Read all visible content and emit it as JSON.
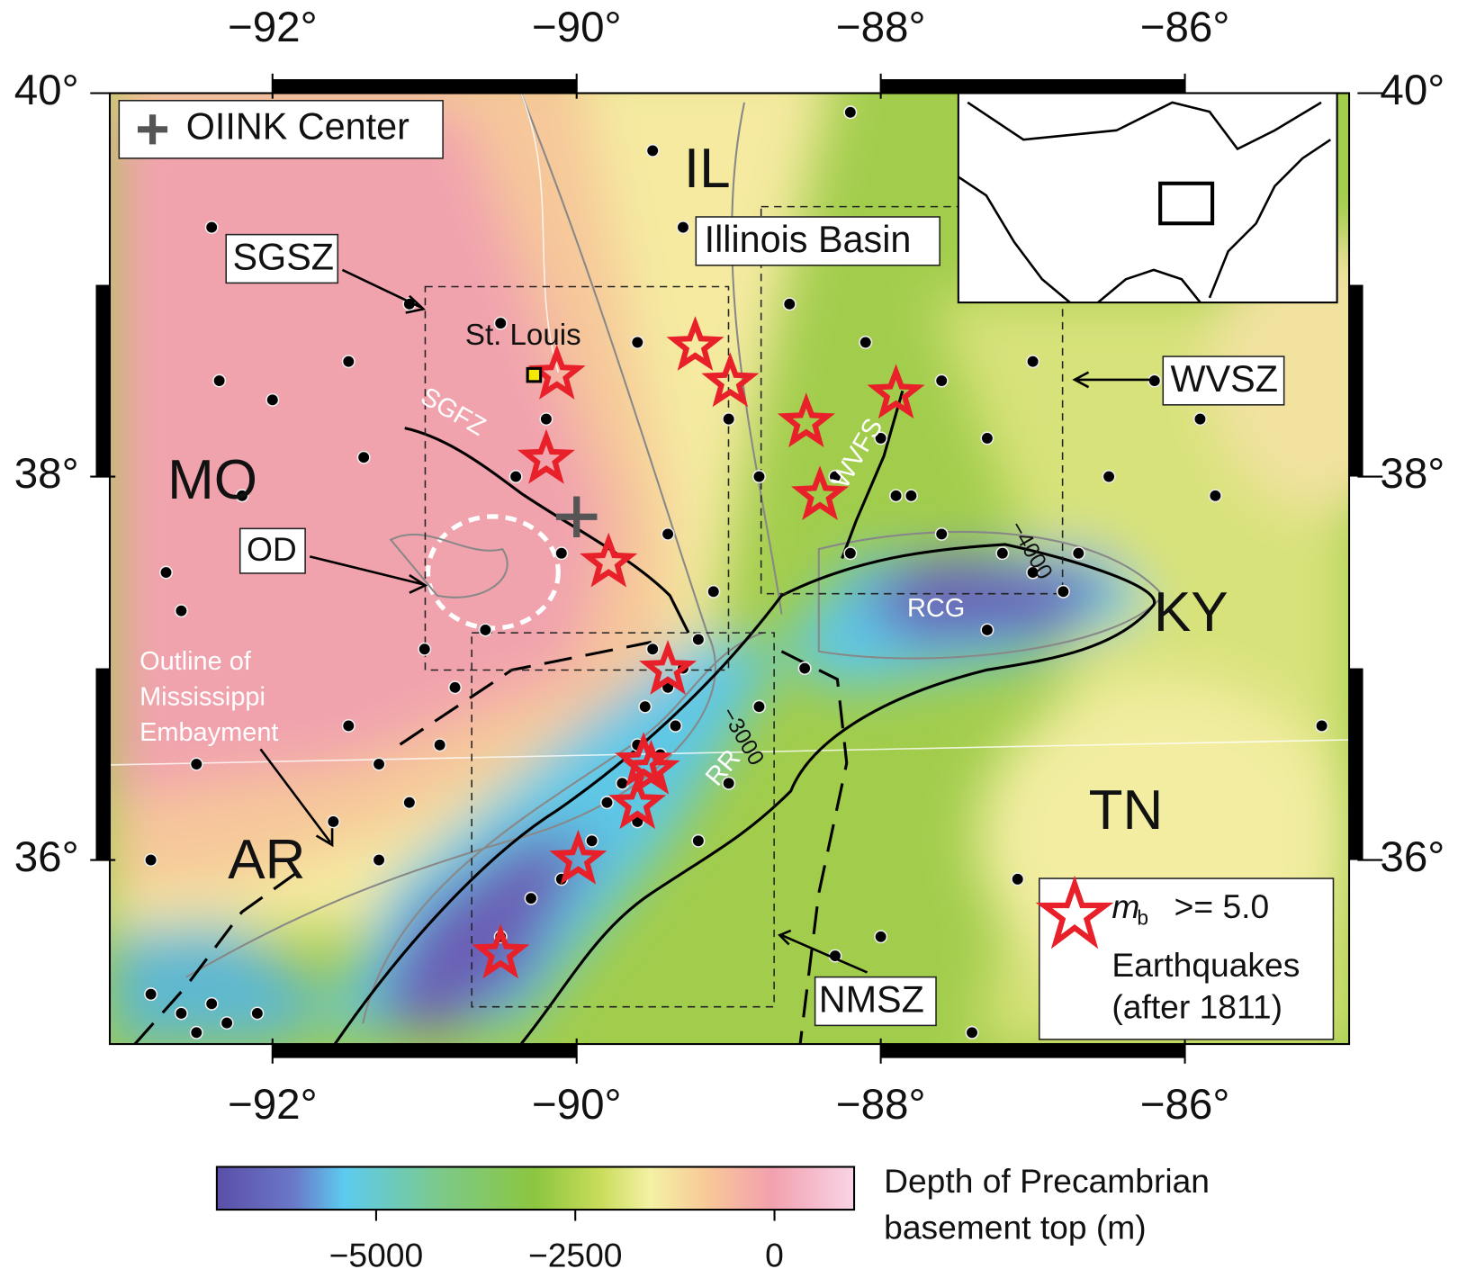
{
  "map": {
    "xlim": [
      -93.07,
      -84.92
    ],
    "ylim": [
      35.04,
      40
    ],
    "xticks": [
      {
        "value": -92,
        "label": "−92°"
      },
      {
        "value": -90,
        "label": "−90°"
      },
      {
        "value": -88,
        "label": "−88°"
      },
      {
        "value": -86,
        "label": "−86°"
      }
    ],
    "yticks": [
      {
        "value": 40,
        "label": "40°"
      },
      {
        "value": 38,
        "label": "38°"
      },
      {
        "value": 36,
        "label": "36°"
      }
    ],
    "legend_center": "OIINK Center",
    "states": {
      "IL": "IL",
      "MO": "MO",
      "KY": "KY",
      "TN": "TN",
      "AR": "AR"
    },
    "regions": {
      "illinois_basin": "Illinois Basin",
      "sgsz": "SGSZ",
      "wvsz": "WVSZ",
      "nmsz": "NMSZ",
      "od": "OD",
      "st_louis": "St. Louis",
      "sgfz": "SGFZ",
      "wvfs": "WVFS",
      "rcg": "RCG",
      "rr": "RR"
    },
    "embayment": [
      "Outline of",
      "Mississippi",
      "Embayment"
    ],
    "contours": [
      "−4000",
      "−3000"
    ],
    "legend": {
      "m": "m",
      "sub": "b",
      "threshold": ">= 5.0",
      "line2": "Earthquakes",
      "line3": "(after 1811)"
    },
    "st_louis_point": [
      -90.28,
      38.53
    ],
    "oiink_center": [
      -90.0,
      37.79
    ],
    "large_earthquakes": [
      [
        -90.13,
        38.53
      ],
      [
        -89.22,
        38.68
      ],
      [
        -88.99,
        38.49
      ],
      [
        -87.9,
        38.43
      ],
      [
        -88.49,
        38.28
      ],
      [
        -90.2,
        38.09
      ],
      [
        -88.4,
        37.9
      ],
      [
        -89.79,
        37.55
      ],
      [
        -89.4,
        36.99
      ],
      [
        -89.56,
        36.51
      ],
      [
        -89.51,
        36.47
      ],
      [
        -89.6,
        36.29
      ],
      [
        -89.99,
        36.0
      ],
      [
        -90.5,
        35.51
      ]
    ],
    "earthquakes": [
      [
        -92.7,
        37.5
      ],
      [
        -92.4,
        39.3
      ],
      [
        -92.35,
        38.5
      ],
      [
        -92.0,
        38.4
      ],
      [
        -91.4,
        38.1
      ],
      [
        -91.1,
        38.9
      ],
      [
        -91.5,
        38.6
      ],
      [
        -92.2,
        37.9
      ],
      [
        -92.6,
        37.3
      ],
      [
        -92.5,
        36.5
      ],
      [
        -92.8,
        36.0
      ],
      [
        -91.0,
        37.1
      ],
      [
        -90.5,
        38.8
      ],
      [
        -90.2,
        38.3
      ],
      [
        -90.4,
        38.0
      ],
      [
        -90.1,
        37.6
      ],
      [
        -89.6,
        38.7
      ],
      [
        -89.3,
        39.3
      ],
      [
        -89.0,
        38.3
      ],
      [
        -88.8,
        38.0
      ],
      [
        -89.4,
        37.7
      ],
      [
        -89.1,
        37.4
      ],
      [
        -88.6,
        38.9
      ],
      [
        -88.1,
        38.7
      ],
      [
        -87.6,
        38.5
      ],
      [
        -87.3,
        38.2
      ],
      [
        -87.8,
        37.9
      ],
      [
        -87.0,
        38.6
      ],
      [
        -86.5,
        38.0
      ],
      [
        -86.8,
        37.4
      ],
      [
        -87.3,
        37.2
      ],
      [
        -88.5,
        37.0
      ],
      [
        -88.8,
        36.8
      ],
      [
        -87.1,
        35.9
      ],
      [
        -86.2,
        38.5
      ],
      [
        -85.9,
        38.3
      ],
      [
        -85.8,
        37.9
      ],
      [
        -85.1,
        36.7
      ],
      [
        -88.3,
        35.5
      ],
      [
        -87.4,
        35.1
      ],
      [
        -88.0,
        35.6
      ],
      [
        -89.5,
        39.7
      ],
      [
        -88.2,
        39.9
      ],
      [
        -89.5,
        37.1
      ],
      [
        -89.4,
        36.9
      ],
      [
        -89.55,
        36.8
      ],
      [
        -89.6,
        36.6
      ],
      [
        -89.7,
        36.4
      ],
      [
        -89.8,
        36.3
      ],
      [
        -89.9,
        36.1
      ],
      [
        -90.1,
        35.9
      ],
      [
        -90.3,
        35.8
      ],
      [
        -90.5,
        35.6
      ],
      [
        -89.6,
        36.2
      ],
      [
        -89.45,
        36.55
      ],
      [
        -89.35,
        36.7
      ],
      [
        -89.3,
        37.0
      ],
      [
        -89.2,
        37.15
      ],
      [
        -89.0,
        36.4
      ],
      [
        -89.2,
        36.1
      ],
      [
        -92.8,
        35.3
      ],
      [
        -92.6,
        35.2
      ],
      [
        -92.4,
        35.25
      ],
      [
        -92.3,
        35.15
      ],
      [
        -92.1,
        35.2
      ],
      [
        -92.5,
        35.1
      ],
      [
        -91.5,
        36.7
      ],
      [
        -91.3,
        36.5
      ],
      [
        -91.1,
        36.3
      ],
      [
        -90.9,
        36.6
      ],
      [
        -91.6,
        36.2
      ],
      [
        -91.3,
        36.0
      ],
      [
        -90.8,
        36.9
      ],
      [
        -90.6,
        37.2
      ],
      [
        -88.3,
        38.0
      ],
      [
        -88.0,
        38.2
      ],
      [
        -87.9,
        37.9
      ],
      [
        -88.2,
        37.6
      ],
      [
        -87.6,
        37.7
      ],
      [
        -87.2,
        37.6
      ],
      [
        -87.0,
        37.5
      ],
      [
        -86.7,
        37.6
      ]
    ]
  },
  "colorbar": {
    "title": [
      "Depth of Precambrian",
      "basement top (m)"
    ],
    "clim": [
      -7000,
      1000
    ],
    "ticks": [
      {
        "value": -5000,
        "label": "−5000"
      },
      {
        "value": -2500,
        "label": "−2500"
      },
      0
    ]
  }
}
